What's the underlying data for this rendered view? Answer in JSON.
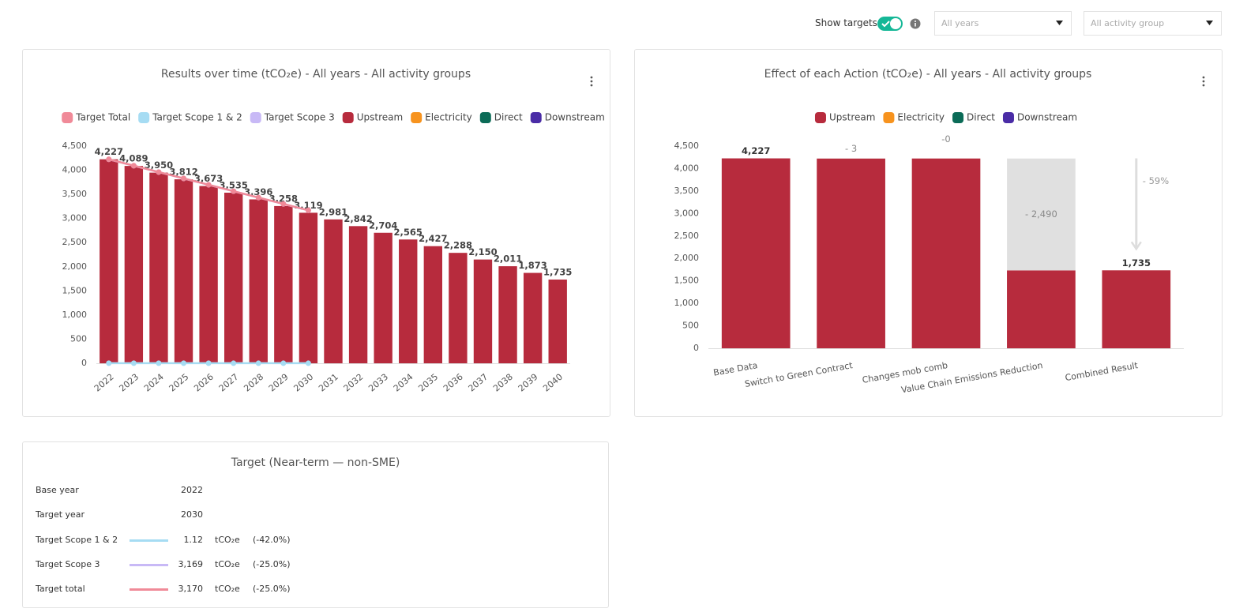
{
  "controls": {
    "show_targets": "Show targets",
    "years": "All years",
    "activity_group": "All activity group"
  },
  "chart_data": [
    {
      "type": "bar",
      "title": "Results over time (tCO₂e) - All years - All activity groups",
      "categories": [
        "2022",
        "2023",
        "2024",
        "2025",
        "2026",
        "2027",
        "2028",
        "2029",
        "2030",
        "2031",
        "2032",
        "2033",
        "2034",
        "2035",
        "2036",
        "2037",
        "2038",
        "2039",
        "2040"
      ],
      "series": [
        {
          "name": "Target Total",
          "type": "line",
          "color": "#f08a98",
          "values": [
            4227,
            4095,
            3963,
            3831,
            3699,
            3566,
            3434,
            3302,
            3170,
            null,
            null,
            null,
            null,
            null,
            null,
            null,
            null,
            null,
            null
          ]
        },
        {
          "name": "Target Scope 1 & 2",
          "type": "line",
          "color": "#a6dcf3",
          "values": [
            1.93,
            1.83,
            1.72,
            1.62,
            1.52,
            1.42,
            1.32,
            1.22,
            1.12,
            null,
            null,
            null,
            null,
            null,
            null,
            null,
            null,
            null,
            null
          ]
        },
        {
          "name": "Target Scope 3",
          "type": "line",
          "color": "#c8b9f6",
          "values": [
            4225,
            4093,
            3961,
            3829,
            3697,
            3565,
            3433,
            3301,
            3169,
            null,
            null,
            null,
            null,
            null,
            null,
            null,
            null,
            null,
            null
          ]
        },
        {
          "name": "Upstream",
          "type": "bar",
          "color": "#b72b3d",
          "values": [
            4227,
            4089,
            3950,
            3812,
            3673,
            3535,
            3396,
            3258,
            3119,
            2981,
            2842,
            2704,
            2565,
            2427,
            2288,
            2150,
            2011,
            1873,
            1735
          ],
          "value_labels": [
            "4,227",
            "4,089",
            "3,950",
            "3,812",
            "3,673",
            "3,535",
            "3,396",
            "3,258",
            "3,119",
            "2,981",
            "2,842",
            "2,704",
            "2,565",
            "2,427",
            "2,288",
            "2,150",
            "2,011",
            "1,873",
            "1,735"
          ]
        },
        {
          "name": "Electricity",
          "type": "bar",
          "color": "#f7931e",
          "values": [
            0,
            0,
            0,
            0,
            0,
            0,
            0,
            0,
            0,
            0,
            0,
            0,
            0,
            0,
            0,
            0,
            0,
            0,
            0
          ]
        },
        {
          "name": "Direct",
          "type": "bar",
          "color": "#0b6b57",
          "values": [
            0,
            0,
            0,
            0,
            0,
            0,
            0,
            0,
            0,
            0,
            0,
            0,
            0,
            0,
            0,
            0,
            0,
            0,
            0
          ]
        },
        {
          "name": "Downstream",
          "type": "bar",
          "color": "#4a2ca6",
          "values": [
            0,
            0,
            0,
            0,
            0,
            0,
            0,
            0,
            0,
            0,
            0,
            0,
            0,
            0,
            0,
            0,
            0,
            0,
            0
          ]
        }
      ],
      "ylim": [
        0,
        4500
      ],
      "yticks": [
        0,
        500,
        {
          "value": 1000,
          "label": "1,000"
        },
        {
          "value": 1500,
          "label": "1,500"
        },
        {
          "value": 2000,
          "label": "2,000"
        },
        {
          "value": 2500,
          "label": "2,500"
        },
        {
          "value": 3000,
          "label": "3,000"
        },
        {
          "value": 3500,
          "label": "3,500"
        },
        {
          "value": 4000,
          "label": "4,000"
        },
        {
          "value": 4500,
          "label": "4,500"
        }
      ]
    },
    {
      "type": "waterfall",
      "title": "Effect of each Action (tCO₂e) - All years - All activity groups",
      "categories": [
        "Base Data",
        "Switch to Green Contract",
        "Changes mob comb",
        "Value Chain Emissions Reduction",
        "Combined Result"
      ],
      "series": [
        {
          "name": "Upstream",
          "color": "#b72b3d",
          "values": [
            4227,
            -3,
            0,
            -2490,
            1735
          ],
          "value_labels": [
            "4,227",
            "- 3",
            "-0",
            "- 2,490",
            "1,735"
          ]
        },
        {
          "name": "Electricity",
          "color": "#f7931e",
          "values": [
            0,
            0,
            0,
            0,
            0
          ]
        },
        {
          "name": "Direct",
          "color": "#0b6b57",
          "values": [
            0,
            0,
            0,
            0,
            0
          ]
        },
        {
          "name": "Downstream",
          "color": "#4a2ca6",
          "values": [
            0,
            0,
            0,
            0,
            0
          ]
        }
      ],
      "decrease_color": "#e0e0e0",
      "annotation": "- 59%",
      "ylim": [
        0,
        4500
      ],
      "yticks": [
        0,
        500,
        {
          "value": 1000,
          "label": "1,000"
        },
        {
          "value": 1500,
          "label": "1,500"
        },
        {
          "value": 2000,
          "label": "2,000"
        },
        {
          "value": 2500,
          "label": "2,500"
        },
        {
          "value": 3000,
          "label": "3,000"
        },
        {
          "value": 3500,
          "label": "3,500"
        },
        {
          "value": 4000,
          "label": "4,000"
        },
        {
          "value": 4500,
          "label": "4,500"
        }
      ]
    }
  ],
  "target": {
    "title": "Target (Near-term — non-SME)",
    "rows": [
      {
        "label": "Base year",
        "value": "2022"
      },
      {
        "label": "Target year",
        "value": "2030"
      },
      {
        "label": "Target Scope 1 & 2",
        "value": "1.12",
        "unit": "tCO₂e",
        "change": "(-42.0%)",
        "color": "#a6dcf3"
      },
      {
        "label": "Target Scope 3",
        "value": "3,169",
        "unit": "tCO₂e",
        "change": "(-25.0%)",
        "color": "#c8b9f6"
      },
      {
        "label": "Target total",
        "value": "3,170",
        "unit": "tCO₂e",
        "change": "(-25.0%)",
        "color": "#f08a98"
      }
    ]
  }
}
